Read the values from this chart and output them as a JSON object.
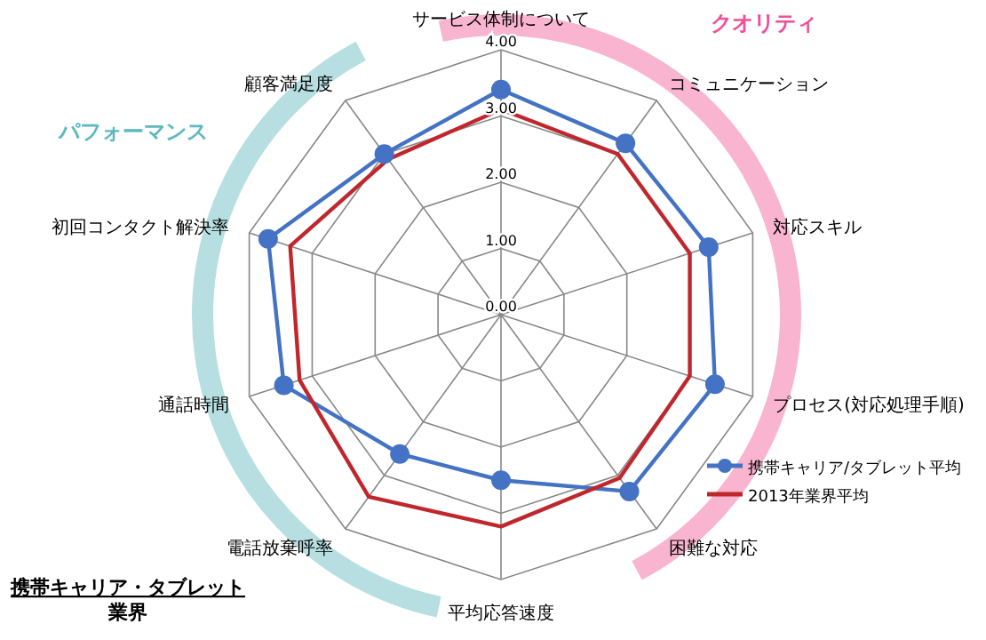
{
  "chart_data": {
    "type": "radar",
    "title": "携帯キャリア・タブレット業界",
    "annotations": [
      "クオリティ",
      "パフォーマンス"
    ],
    "categories": [
      "サービス体制について",
      "コミュニケーション",
      "対応スキル",
      "プロセス(対応処理手順)",
      "困難な対応",
      "平均応答速度",
      "電話放棄呼率",
      "通話時間",
      "初回コンタクト解決率",
      "顧客満足度"
    ],
    "series": [
      {
        "name": "携帯キャリア/タブレット平均",
        "color": "#4472c4",
        "marker": "circle",
        "values": [
          3.4,
          3.2,
          3.3,
          3.4,
          3.3,
          2.5,
          2.6,
          3.45,
          3.7,
          3.0
        ]
      },
      {
        "name": "2013年業界平均",
        "color": "#c0272d",
        "marker": "none",
        "values": [
          3.1,
          3.0,
          3.0,
          3.0,
          3.05,
          3.2,
          3.4,
          3.2,
          3.35,
          2.9
        ]
      }
    ],
    "ylim": [
      0,
      4
    ],
    "yticks": [
      {
        "value": 0,
        "label": "0.00"
      },
      {
        "value": 1,
        "label": "1.00"
      },
      {
        "value": 2,
        "label": "2.00"
      },
      {
        "value": 3,
        "label": "3.00"
      },
      {
        "value": 4,
        "label": "4.00"
      }
    ],
    "grid": true,
    "legend": "bottom right"
  }
}
